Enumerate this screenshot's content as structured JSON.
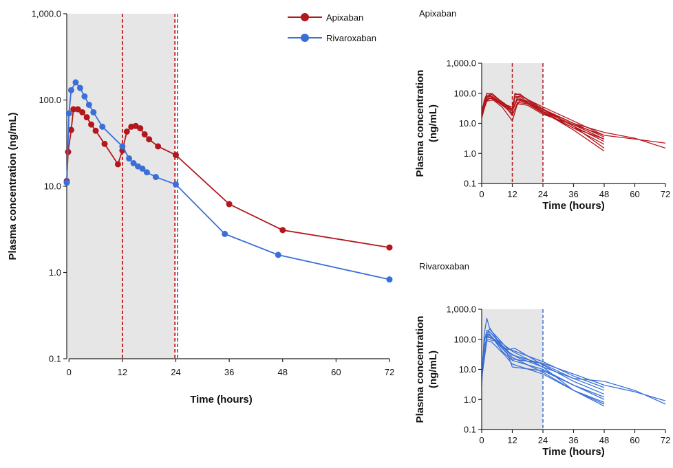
{
  "chart_data": [
    {
      "type": "line",
      "panel": "main",
      "title": "",
      "xlabel": "Time (hours)",
      "ylabel": "Plasma concentration (ng/mL)",
      "x_ticks": [
        0,
        12,
        24,
        36,
        48,
        60,
        72
      ],
      "y_ticks": [
        "0.1",
        "1.0",
        "10.0",
        "100.0",
        "1,000.0"
      ],
      "y_scale": "log",
      "xlim": [
        0,
        72
      ],
      "ylim": [
        0.1,
        1000
      ],
      "dosing_window_hours": [
        0,
        24
      ],
      "vlines": [
        {
          "x": 12,
          "color": "#c0171c"
        },
        {
          "x": 23.8,
          "color": "#c0171c"
        },
        {
          "x": 24.4,
          "color": "#3a6fd8"
        }
      ],
      "legend": "top-right",
      "series": [
        {
          "name": "Apixaban",
          "color": "#b3161b",
          "points": [
            [
              -0.5,
              11.5
            ],
            [
              -0.2,
              25
            ],
            [
              0.5,
              45
            ],
            [
              1,
              78
            ],
            [
              2,
              78
            ],
            [
              3,
              72
            ],
            [
              4,
              63
            ],
            [
              5,
              52
            ],
            [
              6,
              44
            ],
            [
              8,
              31
            ],
            [
              11,
              18
            ],
            [
              12,
              26
            ],
            [
              13,
              43
            ],
            [
              14,
              49
            ],
            [
              15,
              50
            ],
            [
              16,
              47
            ],
            [
              17,
              40
            ],
            [
              18,
              35
            ],
            [
              20,
              29
            ],
            [
              24,
              23
            ],
            [
              36,
              6.2
            ],
            [
              48,
              3.1
            ],
            [
              72,
              1.95
            ]
          ]
        },
        {
          "name": "Rivaroxaban",
          "color": "#3a6fd8",
          "points": [
            [
              -0.5,
              11
            ],
            [
              0,
              70
            ],
            [
              0.5,
              130
            ],
            [
              1.5,
              160
            ],
            [
              2.5,
              138
            ],
            [
              3.5,
              110
            ],
            [
              4.5,
              88
            ],
            [
              5.5,
              72
            ],
            [
              7.5,
              49
            ],
            [
              12,
              29
            ],
            [
              13.5,
              21
            ],
            [
              14.5,
              18.5
            ],
            [
              15.5,
              17
            ],
            [
              16.5,
              16
            ],
            [
              17.5,
              14.5
            ],
            [
              19.5,
              12.8
            ],
            [
              24,
              10.5
            ],
            [
              35,
              2.8
            ],
            [
              47,
              1.6
            ],
            [
              72,
              0.83
            ]
          ]
        }
      ]
    },
    {
      "type": "line",
      "panel": "apixaban-individual",
      "title": "Apixaban",
      "xlabel": "Time (hours)",
      "ylabel": "Plasma concentration (ng/mL)",
      "x_ticks": [
        0,
        12,
        24,
        36,
        48,
        60,
        72
      ],
      "y_ticks": [
        "0.1",
        "1.0",
        "10.0",
        "100.0",
        "1,000.0"
      ],
      "y_scale": "log",
      "xlim": [
        0,
        72
      ],
      "ylim": [
        0.1,
        1000
      ],
      "color": "#b3161b",
      "vlines": [
        12,
        24
      ],
      "series": [
        {
          "points": [
            [
              0,
              15
            ],
            [
              1,
              50
            ],
            [
              2,
              80
            ],
            [
              3,
              90
            ],
            [
              5,
              70
            ],
            [
              8,
              40
            ],
            [
              12,
              22
            ],
            [
              13,
              70
            ],
            [
              15,
              80
            ],
            [
              18,
              50
            ],
            [
              24,
              28
            ],
            [
              36,
              8
            ],
            [
              48,
              2.5
            ]
          ]
        },
        {
          "points": [
            [
              0,
              20
            ],
            [
              1,
              60
            ],
            [
              2,
              95
            ],
            [
              4,
              100
            ],
            [
              7,
              60
            ],
            [
              12,
              30
            ],
            [
              13,
              90
            ],
            [
              15,
              95
            ],
            [
              18,
              60
            ],
            [
              24,
              30
            ],
            [
              36,
              10
            ],
            [
              48,
              3.5
            ]
          ]
        },
        {
          "points": [
            [
              0,
              18
            ],
            [
              2,
              70
            ],
            [
              3,
              85
            ],
            [
              6,
              55
            ],
            [
              12,
              25
            ],
            [
              14,
              75
            ],
            [
              17,
              55
            ],
            [
              24,
              25
            ],
            [
              36,
              9
            ],
            [
              48,
              3
            ]
          ]
        },
        {
          "points": [
            [
              0,
              25
            ],
            [
              2,
              80
            ],
            [
              4,
              75
            ],
            [
              8,
              45
            ],
            [
              12,
              35
            ],
            [
              13,
              80
            ],
            [
              16,
              75
            ],
            [
              24,
              35
            ],
            [
              36,
              12
            ],
            [
              48,
              4
            ]
          ]
        },
        {
          "points": [
            [
              0,
              15
            ],
            [
              1,
              40
            ],
            [
              3,
              70
            ],
            [
              6,
              60
            ],
            [
              12,
              30
            ],
            [
              14,
              60
            ],
            [
              17,
              50
            ],
            [
              24,
              22
            ],
            [
              36,
              7
            ],
            [
              48,
              2
            ]
          ]
        },
        {
          "points": [
            [
              0,
              20
            ],
            [
              2,
              100
            ],
            [
              4,
              90
            ],
            [
              8,
              50
            ],
            [
              12,
              28
            ],
            [
              13,
              100
            ],
            [
              16,
              80
            ],
            [
              24,
              30
            ],
            [
              36,
              8
            ],
            [
              48,
              1.5
            ]
          ]
        },
        {
          "points": [
            [
              0,
              22
            ],
            [
              2,
              65
            ],
            [
              5,
              70
            ],
            [
              9,
              40
            ],
            [
              12,
              18
            ],
            [
              14,
              50
            ],
            [
              18,
              45
            ],
            [
              24,
              24
            ],
            [
              36,
              6
            ],
            [
              48,
              1.2
            ]
          ]
        },
        {
          "points": [
            [
              0,
              30
            ],
            [
              2,
              75
            ],
            [
              4,
              65
            ],
            [
              8,
              35
            ],
            [
              12,
              12
            ],
            [
              14,
              45
            ],
            [
              18,
              40
            ],
            [
              24,
              20
            ],
            [
              36,
              9
            ],
            [
              48,
              4
            ],
            [
              60,
              3
            ],
            [
              72,
              2.2
            ]
          ]
        },
        {
          "points": [
            [
              0,
              15
            ],
            [
              2,
              60
            ],
            [
              4,
              70
            ],
            [
              8,
              50
            ],
            [
              12,
              25
            ],
            [
              14,
              65
            ],
            [
              18,
              55
            ],
            [
              24,
              28
            ],
            [
              36,
              10
            ],
            [
              48,
              5
            ],
            [
              60,
              3.2
            ],
            [
              72,
              1.5
            ]
          ]
        },
        {
          "points": [
            [
              0,
              18
            ],
            [
              2,
              55
            ],
            [
              5,
              60
            ],
            [
              9,
              35
            ],
            [
              12,
              20
            ],
            [
              15,
              60
            ],
            [
              19,
              45
            ],
            [
              24,
              25
            ],
            [
              36,
              7
            ],
            [
              48,
              3
            ]
          ]
        }
      ]
    },
    {
      "type": "line",
      "panel": "rivaroxaban-individual",
      "title": "Rivaroxaban",
      "xlabel": "Time (hours)",
      "ylabel": "Plasma concentration (ng/mL)",
      "x_ticks": [
        0,
        12,
        24,
        36,
        48,
        60,
        72
      ],
      "y_ticks": [
        "0.1",
        "1.0",
        "10.0",
        "100.0",
        "1,000.0"
      ],
      "y_scale": "log",
      "xlim": [
        0,
        72
      ],
      "ylim": [
        0.1,
        1000
      ],
      "color": "#3a6fd8",
      "vlines": [
        24
      ],
      "series": [
        {
          "points": [
            [
              0,
              3
            ],
            [
              1,
              150
            ],
            [
              2,
              500
            ],
            [
              3,
              250
            ],
            [
              6,
              100
            ],
            [
              12,
              40
            ],
            [
              24,
              12
            ],
            [
              36,
              2
            ],
            [
              48,
              0.8
            ]
          ]
        },
        {
          "points": [
            [
              0,
              5
            ],
            [
              1,
              80
            ],
            [
              2,
              200
            ],
            [
              4,
              150
            ],
            [
              8,
              60
            ],
            [
              12,
              30
            ],
            [
              24,
              15
            ],
            [
              36,
              5
            ],
            [
              48,
              2
            ]
          ]
        },
        {
          "points": [
            [
              0,
              4
            ],
            [
              1,
              100
            ],
            [
              3,
              220
            ],
            [
              6,
              120
            ],
            [
              10,
              50
            ],
            [
              24,
              18
            ],
            [
              36,
              6
            ],
            [
              48,
              2.5
            ]
          ]
        },
        {
          "points": [
            [
              0,
              6
            ],
            [
              2,
              150
            ],
            [
              4,
              120
            ],
            [
              8,
              40
            ],
            [
              12,
              20
            ],
            [
              24,
              10
            ],
            [
              36,
              3
            ],
            [
              48,
              1
            ]
          ]
        },
        {
          "points": [
            [
              0,
              5
            ],
            [
              1,
              60
            ],
            [
              3,
              180
            ],
            [
              7,
              80
            ],
            [
              12,
              25
            ],
            [
              24,
              8
            ],
            [
              36,
              2
            ],
            [
              48,
              0.7
            ]
          ]
        },
        {
          "points": [
            [
              0,
              8
            ],
            [
              2,
              120
            ],
            [
              5,
              100
            ],
            [
              10,
              45
            ],
            [
              13,
              50
            ],
            [
              24,
              14
            ],
            [
              36,
              4
            ],
            [
              48,
              1.5
            ]
          ]
        },
        {
          "points": [
            [
              0,
              5
            ],
            [
              2,
              90
            ],
            [
              4,
              80
            ],
            [
              9,
              30
            ],
            [
              12,
              15
            ],
            [
              24,
              7
            ],
            [
              36,
              2
            ],
            [
              48,
              0.6
            ]
          ]
        },
        {
          "points": [
            [
              0,
              6
            ],
            [
              1,
              110
            ],
            [
              3,
              150
            ],
            [
              8,
              50
            ],
            [
              12,
              22
            ],
            [
              24,
              16
            ],
            [
              36,
              7
            ],
            [
              48,
              3
            ],
            [
              60,
              1.8
            ],
            [
              72,
              0.9
            ]
          ]
        },
        {
          "points": [
            [
              0,
              7
            ],
            [
              2,
              130
            ],
            [
              4,
              110
            ],
            [
              10,
              40
            ],
            [
              14,
              25
            ],
            [
              24,
              12
            ],
            [
              36,
              5
            ],
            [
              48,
              4
            ],
            [
              60,
              2
            ],
            [
              72,
              0.7
            ]
          ]
        },
        {
          "points": [
            [
              0,
              5
            ],
            [
              2,
              100
            ],
            [
              5,
              90
            ],
            [
              10,
              35
            ],
            [
              12,
              12
            ],
            [
              24,
              9
            ],
            [
              36,
              3
            ],
            [
              48,
              1.2
            ]
          ]
        }
      ]
    }
  ]
}
